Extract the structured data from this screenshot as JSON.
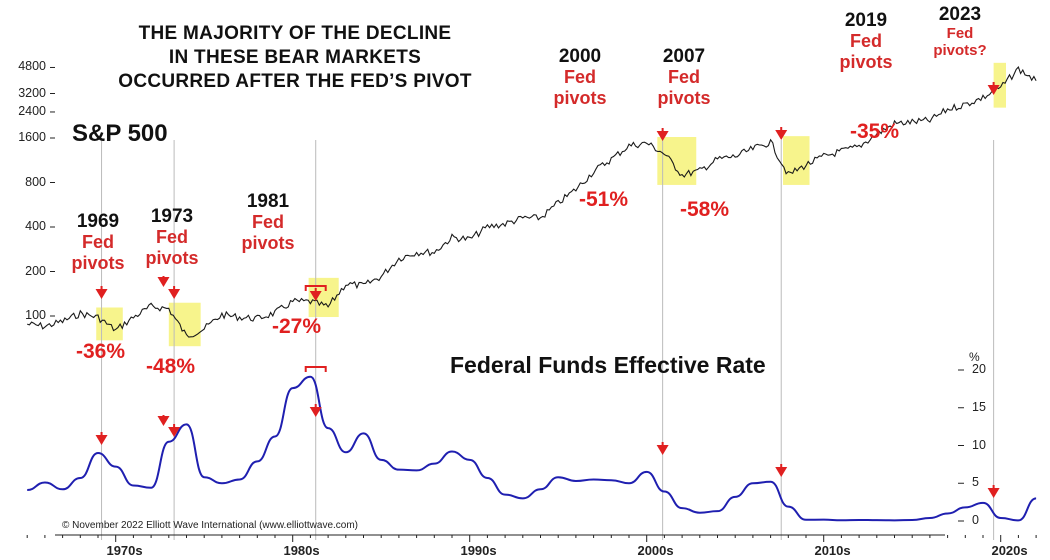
{
  "headline": [
    "THE MAJORITY OF THE DECLINE",
    "IN THESE BEAR MARKETS",
    "OCCURRED AFTER THE FED’S PIVOT"
  ],
  "index_label": "S&P 500",
  "rate_label": "Federal Funds Effective Rate",
  "copyright": "© November 2022 Elliott Wave International (www.elliottwave.com)",
  "percent_unit": "%",
  "colors": {
    "price_line": "#1a1a1a",
    "rate_line": "#1f1fb0",
    "highlight": "#f7f48c",
    "arrow": "#e02020",
    "annotation_red": "#d42a2a",
    "marker_line": "#bbbbbb"
  },
  "annotations": [
    {
      "year": "1969",
      "label": "Fed pivots",
      "drop": "-36%"
    },
    {
      "year": "1973",
      "label": "Fed pivots",
      "drop": "-48%"
    },
    {
      "year": "1981",
      "label": "Fed pivots",
      "drop": "-27%"
    },
    {
      "year": "2000",
      "label": "Fed pivots",
      "drop": "-51%"
    },
    {
      "year": "2007",
      "label": "Fed pivots",
      "drop": "-58%"
    },
    {
      "year": "2019",
      "label": "Fed pivots",
      "drop": "-35%"
    },
    {
      "year": "2023",
      "label": "Fed pivots?",
      "drop": ""
    }
  ],
  "chart_data": [
    {
      "type": "line",
      "series": [
        {
          "name": "S&P 500",
          "x": [
            1965,
            1966,
            1967,
            1968,
            1969,
            1970,
            1971,
            1972,
            1973,
            1974,
            1975,
            1976,
            1977,
            1978,
            1979,
            1980,
            1981,
            1982,
            1983,
            1984,
            1985,
            1986,
            1987,
            1988,
            1989,
            1990,
            1991,
            1992,
            1993,
            1994,
            1995,
            1996,
            1997,
            1998,
            1999,
            2000,
            2001,
            2002,
            2003,
            2004,
            2005,
            2006,
            2007,
            2008,
            2009,
            2010,
            2011,
            2012,
            2013,
            2014,
            2015,
            2016,
            2017,
            2018,
            2019,
            2020,
            2021,
            2022
          ],
          "values": [
            88,
            85,
            92,
            104,
            98,
            80,
            98,
            116,
            112,
            73,
            82,
            102,
            98,
            96,
            105,
            125,
            125,
            115,
            165,
            160,
            185,
            245,
            270,
            270,
            340,
            330,
            400,
            420,
            460,
            460,
            580,
            720,
            950,
            1150,
            1420,
            1480,
            1250,
            900,
            960,
            1150,
            1200,
            1350,
            1500,
            900,
            1050,
            1200,
            1300,
            1400,
            1700,
            2000,
            2050,
            2100,
            2500,
            2700,
            3000,
            3500,
            4700,
            3900
          ]
        }
      ],
      "y_axis": {
        "scale": "log",
        "ticks": [
          100,
          200,
          400,
          800,
          1600,
          2400,
          3200,
          4800
        ]
      },
      "highlighted_declines": [
        {
          "start": 1968.9,
          "end": 1970.4,
          "drop": "-36%"
        },
        {
          "start": 1973.0,
          "end": 1974.8,
          "drop": "-48%"
        },
        {
          "start": 1980.9,
          "end": 1982.6,
          "drop": "-27%"
        },
        {
          "start": 2000.6,
          "end": 2002.8,
          "drop": "-51%"
        },
        {
          "start": 2007.7,
          "end": 2009.2,
          "drop": "-58%"
        },
        {
          "start": 2019.6,
          "end": 2020.3,
          "drop": "-35%"
        }
      ],
      "pivot_points": [
        1969.2,
        1973.3,
        1981.3,
        2000.9,
        2007.6,
        2019.6
      ],
      "title": "S&P 500"
    },
    {
      "type": "line",
      "series": [
        {
          "name": "Federal Funds Effective Rate",
          "x": [
            1965,
            1966,
            1967,
            1968,
            1969,
            1970,
            1971,
            1972,
            1973,
            1974,
            1975,
            1976,
            1977,
            1978,
            1979,
            1980,
            1981,
            1982,
            1983,
            1984,
            1985,
            1986,
            1987,
            1988,
            1989,
            1990,
            1991,
            1992,
            1993,
            1994,
            1995,
            1996,
            1997,
            1998,
            1999,
            2000,
            2001,
            2002,
            2003,
            2004,
            2005,
            2006,
            2007,
            2008,
            2009,
            2010,
            2011,
            2012,
            2013,
            2014,
            2015,
            2016,
            2017,
            2018,
            2019,
            2020,
            2021,
            2022
          ],
          "values": [
            4.1,
            5.1,
            4.2,
            5.7,
            9.0,
            7.2,
            4.7,
            4.4,
            10.5,
            12.8,
            5.8,
            5.0,
            5.5,
            7.9,
            11.2,
            17.6,
            19.1,
            12.3,
            9.1,
            11.6,
            8.1,
            6.8,
            6.7,
            7.6,
            9.2,
            8.1,
            5.7,
            3.5,
            3.0,
            4.2,
            5.8,
            5.3,
            5.5,
            5.4,
            5.0,
            6.5,
            3.9,
            1.7,
            1.1,
            1.3,
            3.2,
            5.0,
            5.2,
            1.9,
            0.16,
            0.18,
            0.1,
            0.14,
            0.11,
            0.09,
            0.13,
            0.39,
            1.0,
            1.8,
            2.4,
            0.4,
            0.08,
            3.0
          ]
        }
      ],
      "y_axis": {
        "ticks": [
          0,
          5,
          10,
          15,
          20
        ],
        "unit": "%"
      },
      "pivot_points": [
        1969.2,
        1973.3,
        1981.3,
        2000.9,
        2007.6,
        2019.6
      ],
      "title": "Federal Funds Effective Rate"
    }
  ],
  "x_axis_labels": [
    "1970s",
    "1980s",
    "1990s",
    "2000s",
    "2010s",
    "2020s"
  ],
  "x_axis_decades": [
    1970,
    1980,
    1990,
    2000,
    2010,
    2020
  ]
}
